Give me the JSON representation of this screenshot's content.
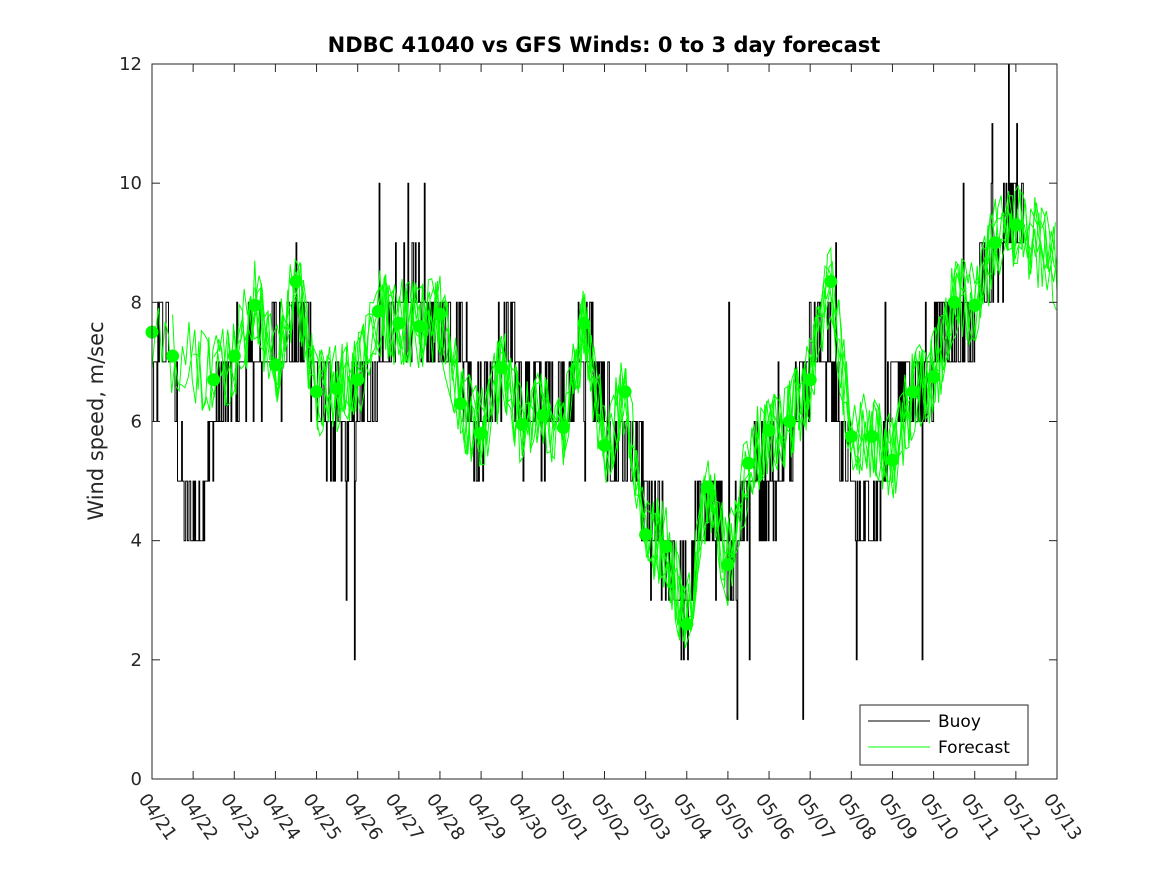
{
  "chart_data": {
    "type": "line",
    "title": "NDBC 41040 vs GFS Winds: 0 to 3 day forecast",
    "xlabel": "",
    "ylabel": "Wind speed, m/sec",
    "ylim": [
      0,
      12
    ],
    "yticks": [
      0,
      2,
      4,
      6,
      8,
      10,
      12
    ],
    "xlim": [
      0,
      22
    ],
    "xtick_labels": [
      "04/21",
      "04/22",
      "04/23",
      "04/24",
      "04/25",
      "04/26",
      "04/27",
      "04/28",
      "04/29",
      "04/30",
      "05/01",
      "05/02",
      "05/03",
      "05/04",
      "05/05",
      "05/06",
      "05/07",
      "05/08",
      "05/09",
      "05/10",
      "05/11",
      "05/12",
      "05/13"
    ],
    "grid": false,
    "legend": {
      "placement": "bottom-right",
      "entries": [
        "Buoy",
        "Forecast"
      ]
    },
    "colors": {
      "buoy": "#000000",
      "forecast": "#00ff00"
    },
    "buoy_anchors": [
      [
        0.0,
        6.2
      ],
      [
        0.15,
        7.0
      ],
      [
        0.35,
        7.5
      ],
      [
        0.5,
        6.8
      ],
      [
        0.6,
        6.0
      ],
      [
        0.7,
        5.2
      ],
      [
        0.8,
        4.4
      ],
      [
        1.0,
        4.3
      ],
      [
        1.2,
        4.5
      ],
      [
        1.4,
        5.6
      ],
      [
        1.6,
        6.4
      ],
      [
        1.8,
        6.6
      ],
      [
        2.0,
        6.8
      ],
      [
        2.3,
        7.0
      ],
      [
        2.6,
        7.0
      ],
      [
        2.9,
        7.3
      ],
      [
        3.2,
        7.2
      ],
      [
        3.5,
        7.5
      ],
      [
        3.8,
        7.6
      ],
      [
        4.0,
        6.4
      ],
      [
        4.3,
        6.0
      ],
      [
        4.6,
        5.6
      ],
      [
        4.8,
        5.9
      ],
      [
        5.0,
        6.0
      ],
      [
        5.3,
        6.5
      ],
      [
        5.6,
        7.2
      ],
      [
        5.9,
        7.6
      ],
      [
        6.2,
        7.9
      ],
      [
        6.5,
        7.8
      ],
      [
        6.8,
        7.6
      ],
      [
        7.0,
        7.3
      ],
      [
        7.3,
        7.7
      ],
      [
        7.6,
        7.2
      ],
      [
        7.8,
        6.2
      ],
      [
        8.0,
        6.0
      ],
      [
        8.3,
        6.6
      ],
      [
        8.6,
        7.1
      ],
      [
        8.9,
        7.0
      ],
      [
        9.2,
        6.4
      ],
      [
        9.5,
        6.1
      ],
      [
        9.8,
        6.5
      ],
      [
        10.0,
        6.4
      ],
      [
        10.2,
        6.3
      ],
      [
        10.4,
        7.2
      ],
      [
        10.6,
        7.2
      ],
      [
        10.8,
        6.8
      ],
      [
        11.0,
        6.0
      ],
      [
        11.3,
        5.6
      ],
      [
        11.6,
        5.8
      ],
      [
        11.8,
        5.3
      ],
      [
        12.0,
        4.5
      ],
      [
        12.2,
        4.0
      ],
      [
        12.4,
        3.8
      ],
      [
        12.6,
        3.6
      ],
      [
        12.8,
        3.3
      ],
      [
        13.0,
        3.0
      ],
      [
        13.2,
        4.0
      ],
      [
        13.4,
        4.8
      ],
      [
        13.6,
        4.4
      ],
      [
        13.8,
        4.0
      ],
      [
        14.0,
        3.5
      ],
      [
        14.2,
        4.0
      ],
      [
        14.4,
        4.9
      ],
      [
        14.6,
        5.2
      ],
      [
        14.8,
        5.0
      ],
      [
        15.0,
        5.2
      ],
      [
        15.2,
        5.0
      ],
      [
        15.4,
        5.6
      ],
      [
        15.6,
        6.2
      ],
      [
        15.8,
        6.8
      ],
      [
        16.0,
        7.2
      ],
      [
        16.2,
        7.5
      ],
      [
        16.4,
        7.0
      ],
      [
        16.6,
        6.5
      ],
      [
        16.8,
        5.5
      ],
      [
        17.0,
        5.0
      ],
      [
        17.2,
        4.2
      ],
      [
        17.4,
        4.5
      ],
      [
        17.6,
        4.5
      ],
      [
        17.8,
        5.8
      ],
      [
        18.0,
        6.3
      ],
      [
        18.2,
        6.8
      ],
      [
        18.4,
        6.4
      ],
      [
        18.6,
        6.3
      ],
      [
        18.8,
        6.8
      ],
      [
        19.0,
        7.2
      ],
      [
        19.2,
        7.6
      ],
      [
        19.4,
        7.4
      ],
      [
        19.6,
        7.3
      ],
      [
        19.8,
        7.4
      ],
      [
        20.0,
        7.8
      ],
      [
        20.2,
        8.6
      ],
      [
        20.4,
        8.9
      ],
      [
        20.6,
        8.6
      ],
      [
        20.8,
        9.4
      ],
      [
        21.0,
        9.8
      ],
      [
        21.2,
        9.0
      ]
    ],
    "buoy_spikes": [
      [
        0.2,
        8.0
      ],
      [
        1.7,
        6.0
      ],
      [
        3.0,
        8.0
      ],
      [
        3.5,
        9.0
      ],
      [
        4.5,
        6.5
      ],
      [
        4.7,
        3.0
      ],
      [
        4.9,
        2.0
      ],
      [
        5.2,
        6.5
      ],
      [
        5.5,
        10.0
      ],
      [
        5.9,
        9.0
      ],
      [
        6.1,
        9.0
      ],
      [
        6.2,
        10.0
      ],
      [
        6.3,
        9.0
      ],
      [
        6.6,
        10.0
      ],
      [
        7.0,
        8.0
      ],
      [
        7.8,
        5.0
      ],
      [
        8.4,
        8.0
      ],
      [
        9.0,
        5.0
      ],
      [
        10.5,
        5.0
      ],
      [
        11.0,
        5.5
      ],
      [
        12.1,
        3.0
      ],
      [
        13.0,
        2.0
      ],
      [
        14.0,
        8.0
      ],
      [
        14.2,
        1.0
      ],
      [
        14.5,
        2.0
      ],
      [
        15.2,
        7.0
      ],
      [
        15.8,
        1.0
      ],
      [
        16.6,
        8.5
      ],
      [
        17.1,
        2.0
      ],
      [
        17.8,
        8.0
      ],
      [
        18.7,
        2.0
      ],
      [
        19.7,
        10.0
      ],
      [
        20.4,
        11.0
      ],
      [
        20.8,
        12.0
      ],
      [
        21.0,
        11.0
      ]
    ],
    "forecast_markers": [
      [
        0.0,
        7.5
      ],
      [
        0.5,
        7.1
      ],
      [
        1.5,
        6.7
      ],
      [
        2.0,
        7.1
      ],
      [
        2.5,
        7.95
      ],
      [
        3.0,
        6.95
      ],
      [
        3.5,
        8.35
      ],
      [
        4.0,
        6.5
      ],
      [
        4.5,
        6.55
      ],
      [
        5.0,
        6.7
      ],
      [
        5.5,
        7.85
      ],
      [
        6.0,
        7.65
      ],
      [
        6.5,
        7.6
      ],
      [
        7.0,
        7.8
      ],
      [
        7.5,
        6.3
      ],
      [
        8.0,
        5.8
      ],
      [
        8.5,
        6.9
      ],
      [
        9.0,
        5.95
      ],
      [
        9.5,
        6.1
      ],
      [
        10.0,
        5.9
      ],
      [
        10.5,
        7.65
      ],
      [
        11.0,
        5.6
      ],
      [
        11.5,
        6.5
      ],
      [
        12.0,
        4.1
      ],
      [
        12.5,
        3.9
      ],
      [
        13.0,
        2.6
      ],
      [
        13.5,
        4.9
      ],
      [
        14.0,
        3.6
      ],
      [
        14.5,
        5.3
      ],
      [
        15.0,
        5.85
      ],
      [
        15.5,
        6.0
      ],
      [
        16.0,
        6.7
      ],
      [
        16.5,
        8.35
      ],
      [
        17.0,
        5.75
      ],
      [
        17.5,
        5.75
      ],
      [
        18.0,
        5.35
      ],
      [
        18.5,
        6.5
      ],
      [
        19.0,
        6.75
      ],
      [
        19.5,
        8.0
      ],
      [
        20.0,
        7.95
      ],
      [
        20.5,
        9.0
      ],
      [
        21.0,
        9.3
      ]
    ]
  }
}
